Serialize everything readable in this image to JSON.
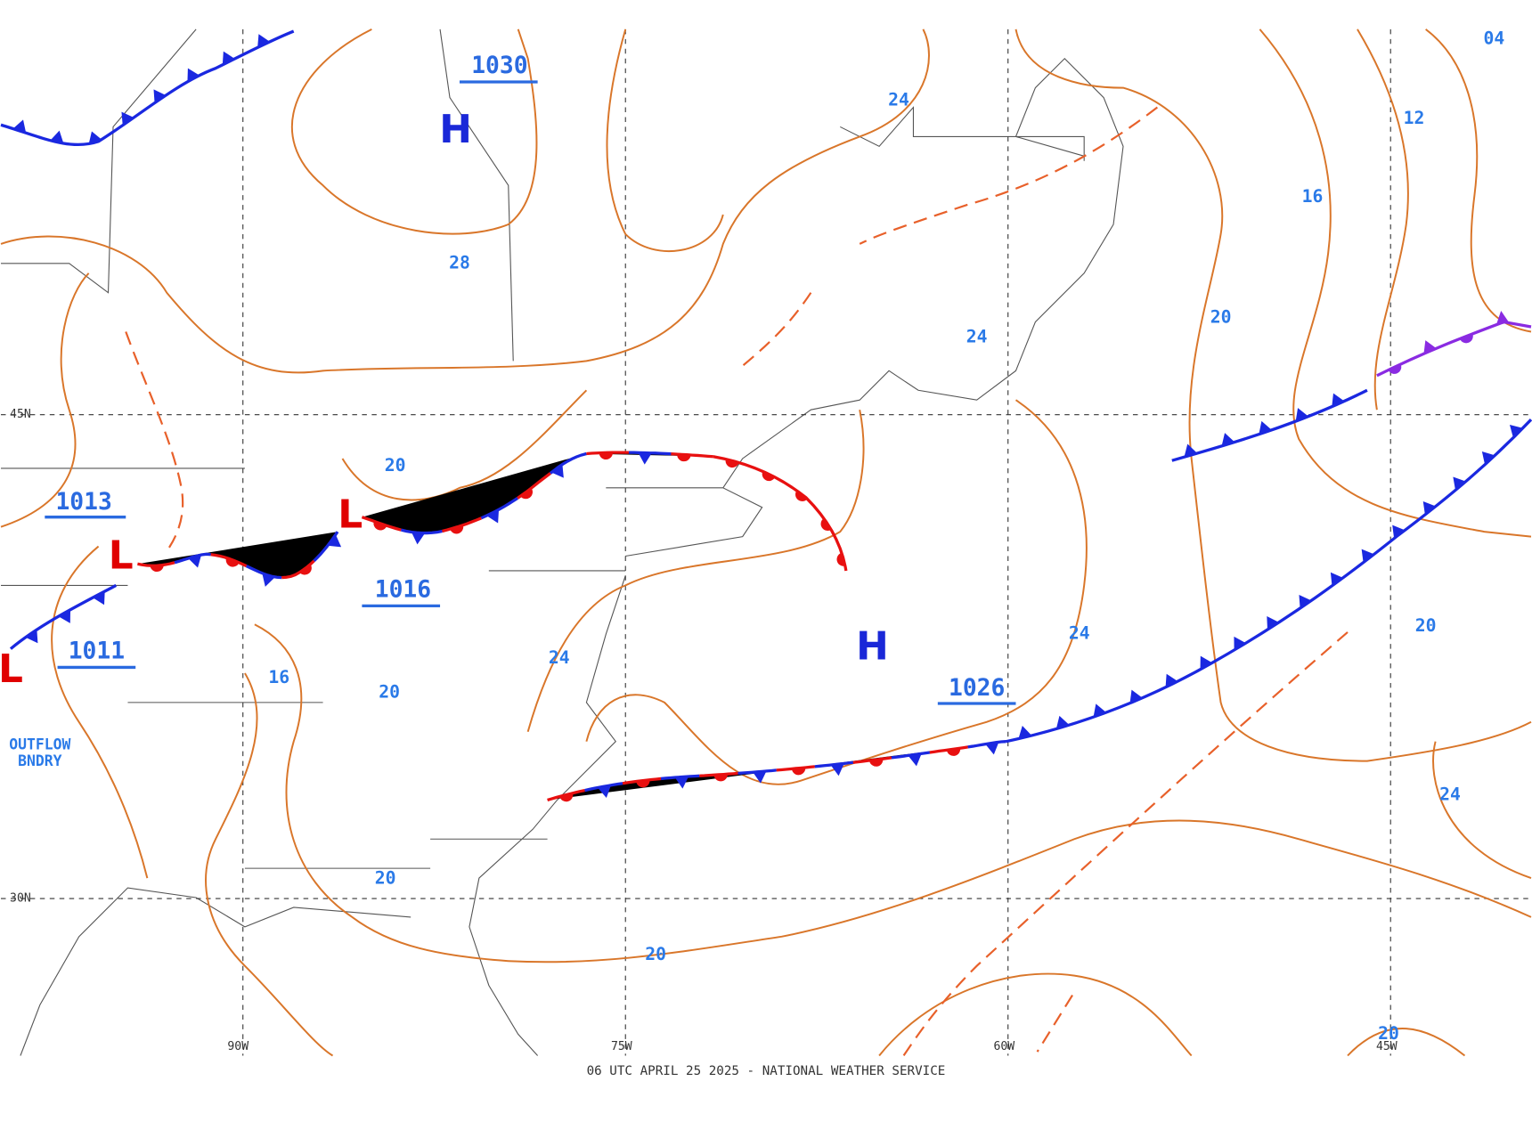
{
  "map": {
    "footer": "06 UTC APRIL 25 2025 - NATIONAL WEATHER SERVICE",
    "grid_labels": [
      "45N",
      "30N",
      "90W",
      "75W",
      "60W",
      "45W"
    ],
    "pressure_centers": [
      {
        "symbol": "H",
        "pressure": "1030"
      },
      {
        "symbol": "L",
        "pressure": "1013"
      },
      {
        "symbol": "L",
        "pressure": "1011"
      },
      {
        "symbol": "L",
        "pressure": "1016"
      },
      {
        "symbol": "H",
        "pressure": "1026"
      }
    ],
    "isobar_labels": [
      "04",
      "12",
      "16",
      "20",
      "24",
      "28",
      "24",
      "20",
      "16",
      "20",
      "24",
      "24",
      "20",
      "24",
      "20",
      "20",
      "20"
    ],
    "annotations": [
      "OUTFLOW",
      "BNDRY"
    ]
  }
}
